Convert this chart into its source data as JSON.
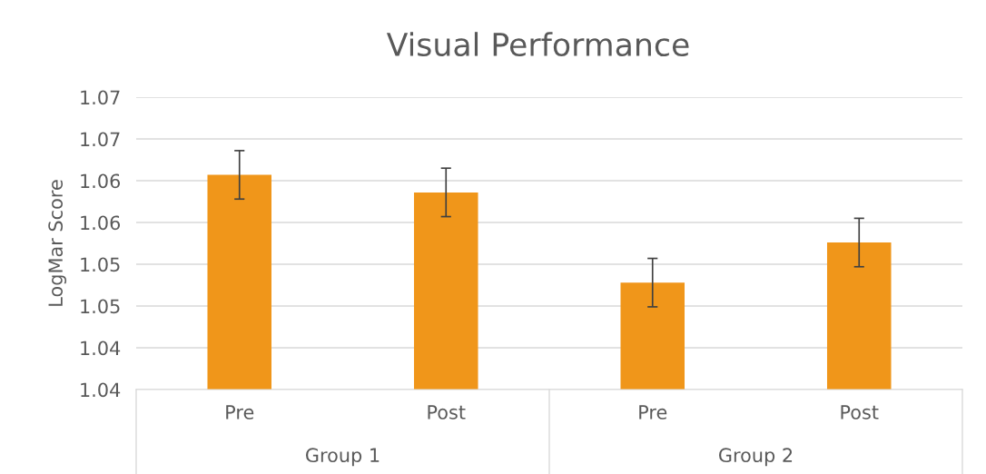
{
  "chart_data": {
    "type": "bar",
    "title": "Visual Performance",
    "ylabel": "LogMar Score",
    "categories": [
      "Pre",
      "Post",
      "Pre",
      "Post"
    ],
    "annotations": [
      "Group 1",
      "Group 2"
    ],
    "values": [
      1.0657,
      1.0636,
      1.0528,
      1.0576
    ],
    "errors": [
      0.0029,
      0.0029,
      0.0029,
      0.0029
    ],
    "color": "#f0961a",
    "ylim": [
      1.04,
      1.075
    ],
    "yticks": [
      {
        "value": 1.04,
        "label": "1.04"
      },
      {
        "value": 1.045,
        "label": "1.04"
      },
      {
        "value": 1.05,
        "label": "1.05"
      },
      {
        "value": 1.055,
        "label": "1.05"
      },
      {
        "value": 1.06,
        "label": "1.06"
      },
      {
        "value": 1.065,
        "label": "1.06"
      },
      {
        "value": 1.07,
        "label": "1.07"
      },
      {
        "value": 1.075,
        "label": "1.07"
      }
    ],
    "grid": "y",
    "legend": false
  }
}
